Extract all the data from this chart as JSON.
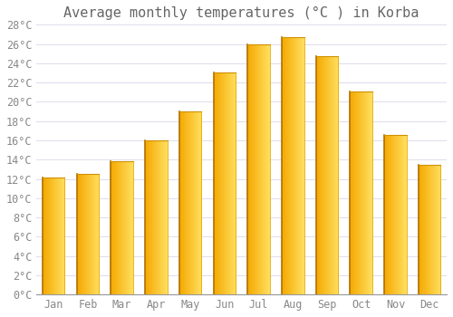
{
  "title": "Average monthly temperatures (°C ) in Korba",
  "months": [
    "Jan",
    "Feb",
    "Mar",
    "Apr",
    "May",
    "Jun",
    "Jul",
    "Aug",
    "Sep",
    "Oct",
    "Nov",
    "Dec"
  ],
  "values": [
    12.1,
    12.5,
    13.8,
    16.0,
    19.0,
    23.0,
    26.0,
    26.7,
    24.7,
    21.1,
    16.6,
    13.5
  ],
  "bar_color_left": "#F5A800",
  "bar_color_mid": "#FFB800",
  "bar_color_right": "#FFE060",
  "edge_color_left": "#C07000",
  "edge_color_right": "#E8A800",
  "background_color": "#FFFFFF",
  "grid_color": "#DDDDEE",
  "ylim": [
    0,
    28
  ],
  "yticks": [
    0,
    2,
    4,
    6,
    8,
    10,
    12,
    14,
    16,
    18,
    20,
    22,
    24,
    26,
    28
  ],
  "title_fontsize": 11,
  "tick_fontsize": 8.5,
  "font_family": "monospace"
}
